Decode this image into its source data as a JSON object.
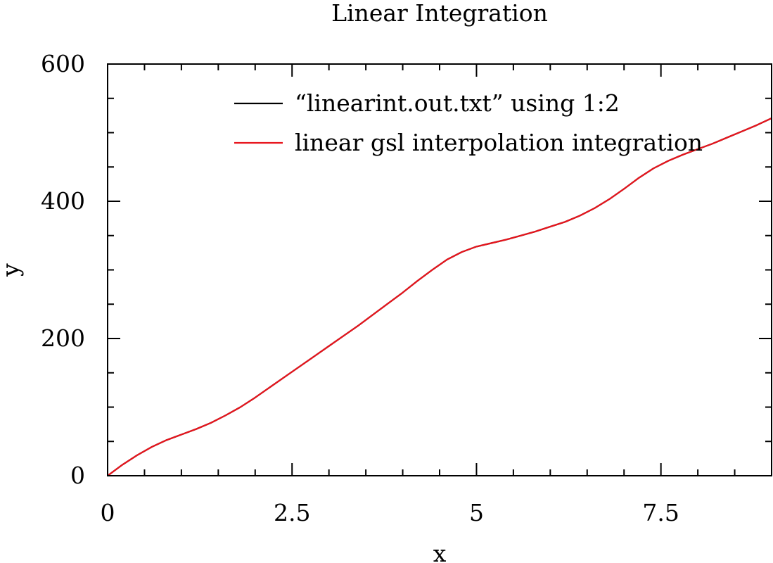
{
  "chart_data": {
    "type": "line",
    "title": "Linear Integration",
    "xlabel": "x",
    "ylabel": "y",
    "xlim": [
      0,
      9
    ],
    "ylim": [
      0,
      600
    ],
    "xticks": [
      0,
      2.5,
      5,
      7.5
    ],
    "xtick_labels": [
      "0",
      "2.5",
      "5",
      "7.5"
    ],
    "yticks": [
      0,
      200,
      400,
      600
    ],
    "ytick_labels": [
      "0",
      "200",
      "400",
      "600"
    ],
    "x_minor_step": 0.5,
    "y_minor_step": 50,
    "grid": false,
    "legend_position": "top-right",
    "series": [
      {
        "name": "“linearint.out.txt” using 1:2",
        "color": "#000000",
        "x": [
          0,
          0.2,
          0.4,
          0.6,
          0.8,
          1.0,
          1.2,
          1.4,
          1.6,
          1.8,
          2.0,
          2.2,
          2.4,
          2.6,
          2.8,
          3.0,
          3.2,
          3.4,
          3.6,
          3.8,
          4.0,
          4.2,
          4.4,
          4.6,
          4.8,
          5.0,
          5.2,
          5.4,
          5.6,
          5.8,
          6.0,
          6.2,
          6.4,
          6.6,
          6.8,
          7.0,
          7.2,
          7.4,
          7.6,
          7.8,
          8.0,
          8.2,
          8.4,
          8.6,
          8.8,
          9.0
        ],
        "y": [
          0,
          16,
          30,
          42,
          52,
          60,
          68,
          77,
          88,
          100,
          114,
          129,
          144,
          159,
          174,
          189,
          204,
          219,
          235,
          251,
          267,
          284,
          300,
          315,
          326,
          334,
          339,
          344,
          350,
          356,
          363,
          370,
          379,
          390,
          403,
          418,
          434,
          448,
          459,
          468,
          476,
          484,
          493,
          502,
          511,
          521
        ]
      },
      {
        "name": "linear gsl interpolation integration",
        "color": "#e8141c",
        "x": [
          0,
          0.2,
          0.4,
          0.6,
          0.8,
          1.0,
          1.2,
          1.4,
          1.6,
          1.8,
          2.0,
          2.2,
          2.4,
          2.6,
          2.8,
          3.0,
          3.2,
          3.4,
          3.6,
          3.8,
          4.0,
          4.2,
          4.4,
          4.6,
          4.8,
          5.0,
          5.2,
          5.4,
          5.6,
          5.8,
          6.0,
          6.2,
          6.4,
          6.6,
          6.8,
          7.0,
          7.2,
          7.4,
          7.6,
          7.8,
          8.0,
          8.2,
          8.4,
          8.6,
          8.8,
          9.0
        ],
        "y": [
          0,
          16,
          30,
          42,
          52,
          60,
          68,
          77,
          88,
          100,
          114,
          129,
          144,
          159,
          174,
          189,
          204,
          219,
          235,
          251,
          267,
          284,
          300,
          315,
          326,
          334,
          339,
          344,
          350,
          356,
          363,
          370,
          379,
          390,
          403,
          418,
          434,
          448,
          459,
          468,
          476,
          484,
          493,
          502,
          511,
          521
        ]
      }
    ]
  }
}
